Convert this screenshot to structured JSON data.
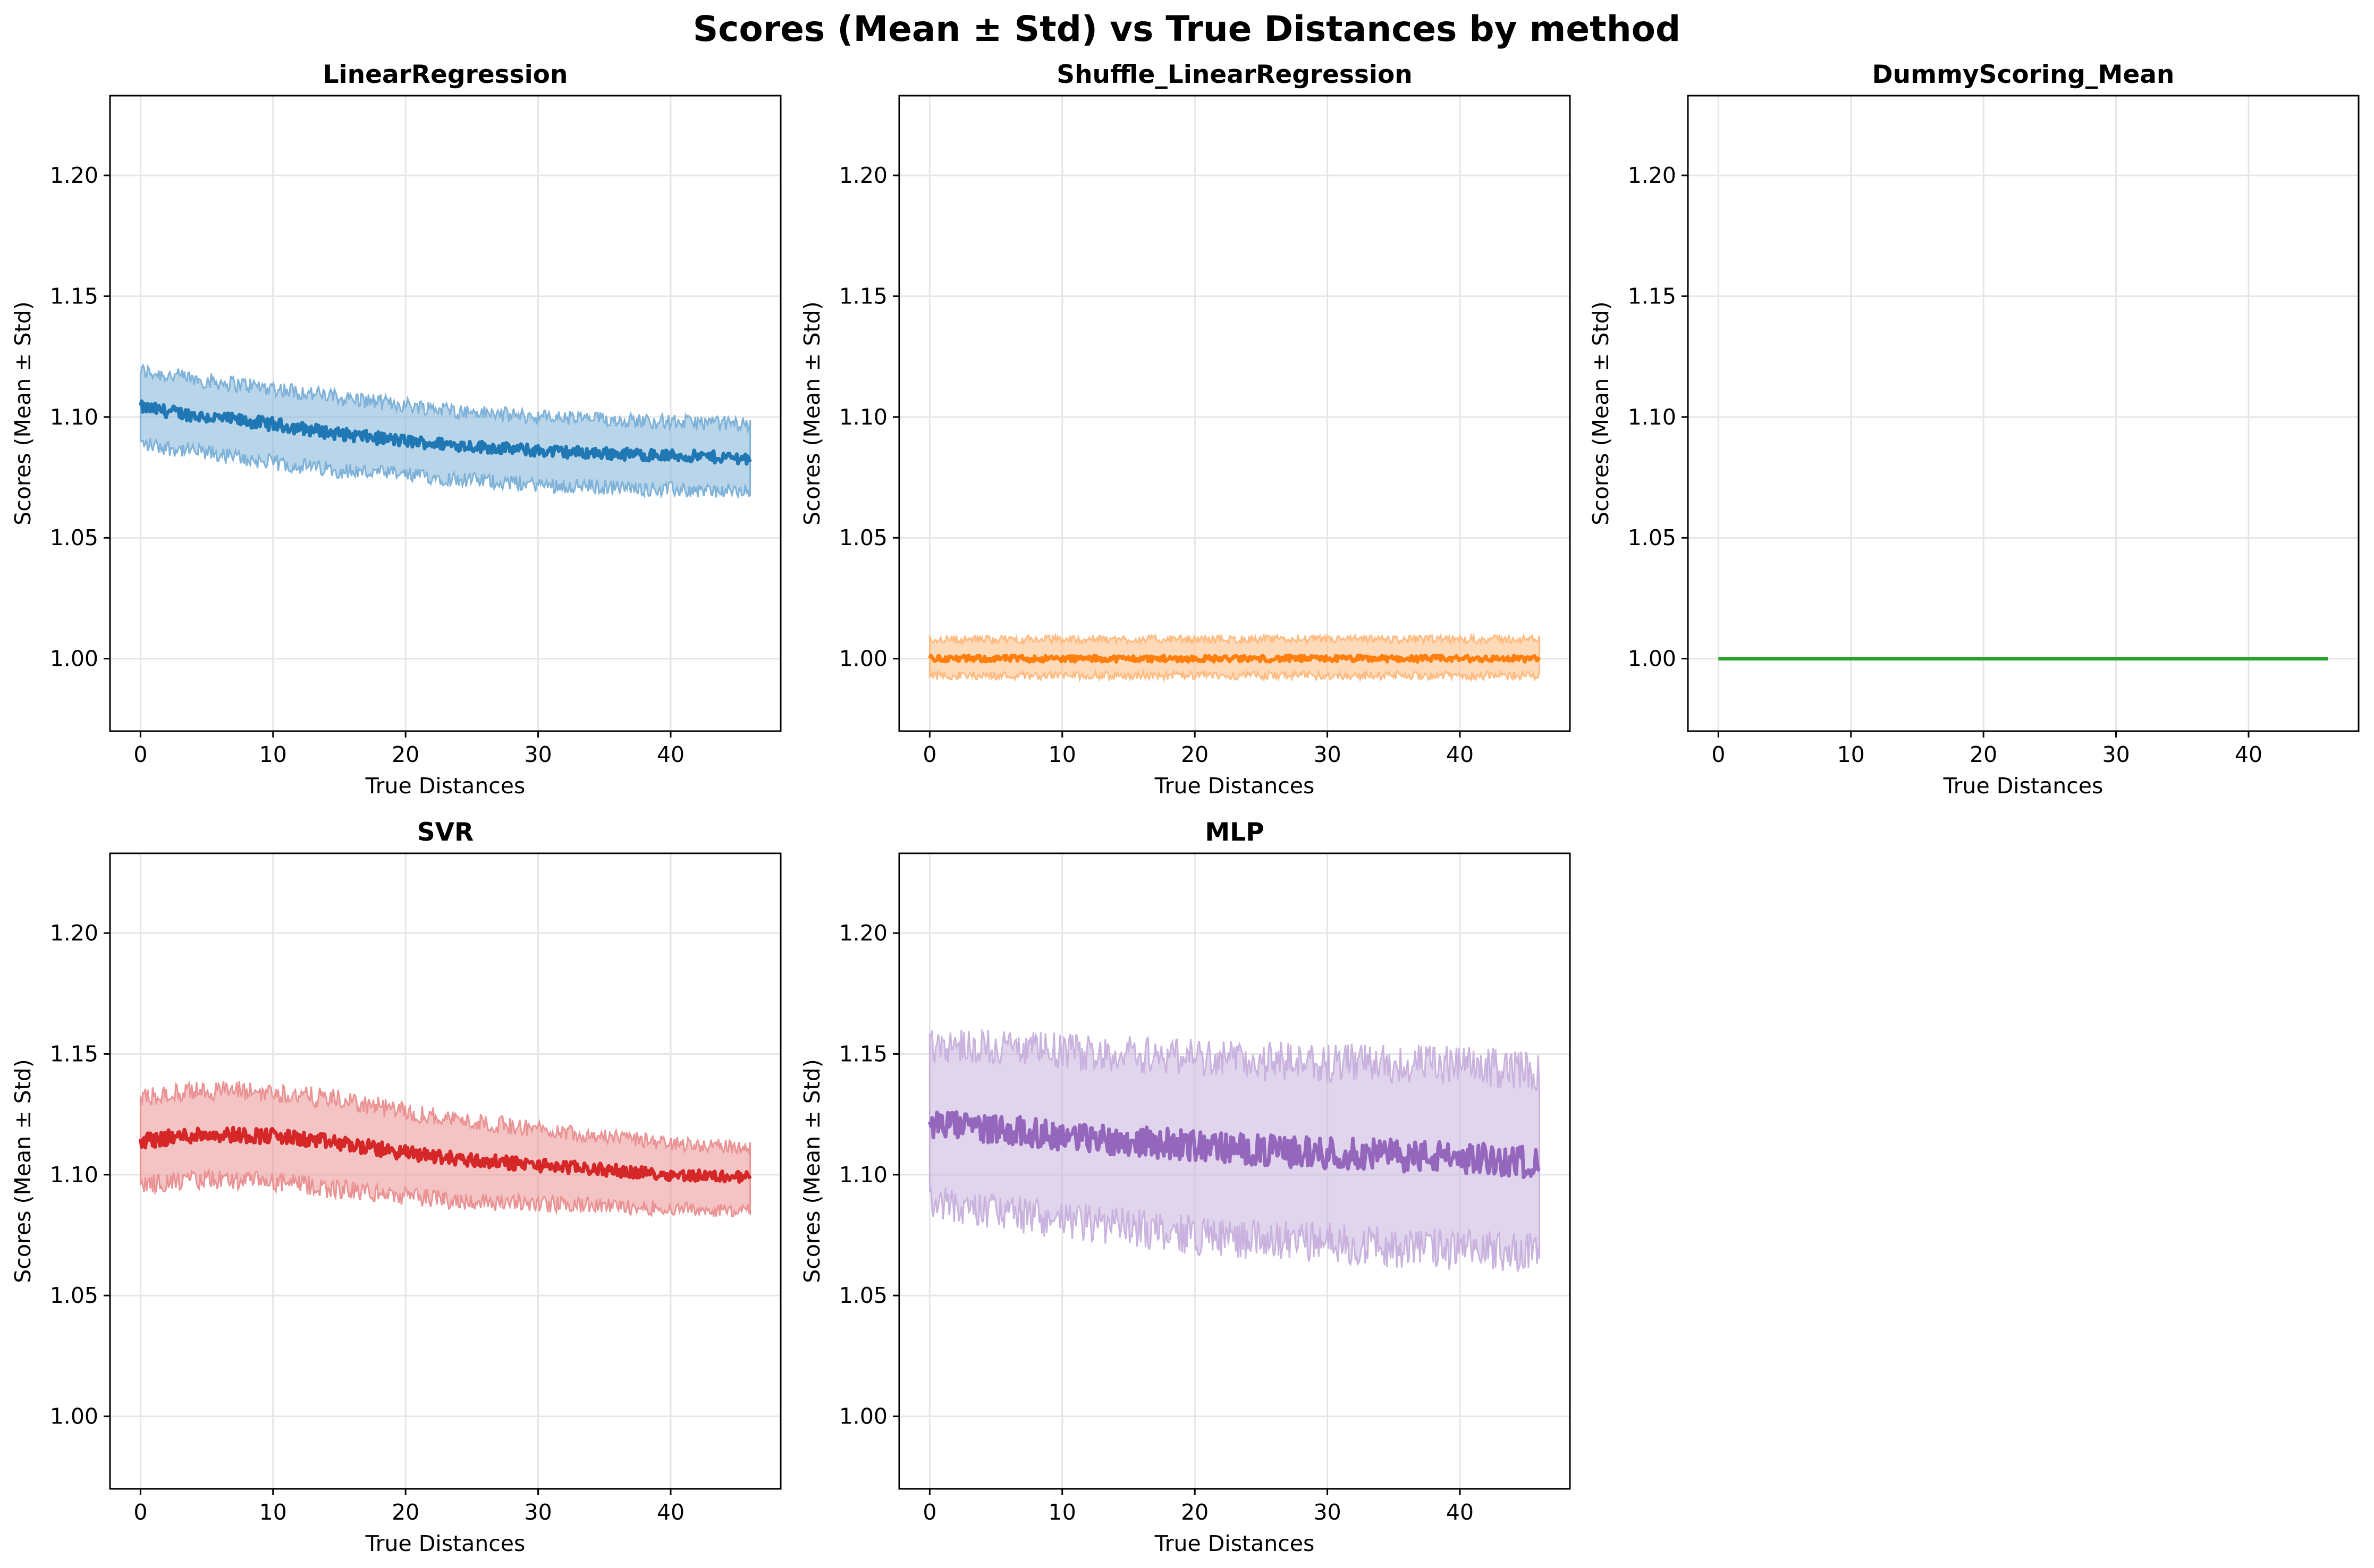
{
  "suptitle": "Scores (Mean ± Std) vs True Distances by method",
  "chart_data": [
    {
      "type": "line",
      "title": "LinearRegression",
      "xlabel": "True Distances",
      "ylabel": "Scores (Mean ± Std)",
      "xlim": [
        -2.3,
        48.3
      ],
      "ylim": [
        0.97,
        1.233
      ],
      "xticks": [
        0,
        10,
        20,
        30,
        40
      ],
      "yticks": [
        1.0,
        1.05,
        1.1,
        1.15,
        1.2
      ],
      "ytick_labels": [
        "1.00",
        "1.05",
        "1.10",
        "1.15",
        "1.20"
      ],
      "grid": true,
      "color": "#1f77b4",
      "band_color": "#7fb2d9",
      "series": {
        "x": [
          0,
          5,
          10,
          15,
          20,
          25,
          30,
          35,
          40,
          46
        ],
        "mean": [
          1.104,
          1.1,
          1.097,
          1.093,
          1.09,
          1.088,
          1.086,
          1.085,
          1.084,
          1.083
        ],
        "lower": [
          1.089,
          1.085,
          1.081,
          1.078,
          1.076,
          1.074,
          1.072,
          1.071,
          1.07,
          1.069
        ],
        "upper": [
          1.119,
          1.115,
          1.112,
          1.108,
          1.105,
          1.102,
          1.1,
          1.099,
          1.098,
          1.097
        ]
      }
    },
    {
      "type": "line",
      "title": "Shuffle_LinearRegression",
      "xlabel": "True Distances",
      "ylabel": "Scores (Mean ± Std)",
      "xlim": [
        -2.3,
        48.3
      ],
      "ylim": [
        0.97,
        1.233
      ],
      "xticks": [
        0,
        10,
        20,
        30,
        40
      ],
      "yticks": [
        1.0,
        1.05,
        1.1,
        1.15,
        1.2
      ],
      "ytick_labels": [
        "1.00",
        "1.05",
        "1.10",
        "1.15",
        "1.20"
      ],
      "grid": true,
      "color": "#ff7f0e",
      "band_color": "#ffbb80",
      "series": {
        "x": [
          0,
          5,
          10,
          15,
          20,
          25,
          30,
          35,
          40,
          46
        ],
        "mean": [
          1.0,
          1.0,
          1.0,
          1.0,
          1.0,
          1.0,
          1.0,
          1.0,
          1.0,
          1.0
        ],
        "lower": [
          0.993,
          0.993,
          0.993,
          0.993,
          0.993,
          0.993,
          0.993,
          0.993,
          0.993,
          0.993
        ],
        "upper": [
          1.008,
          1.008,
          1.008,
          1.008,
          1.008,
          1.008,
          1.008,
          1.008,
          1.008,
          1.008
        ]
      }
    },
    {
      "type": "line",
      "title": "DummyScoring_Mean",
      "xlabel": "True Distances",
      "ylabel": "Scores (Mean ± Std)",
      "xlim": [
        -2.3,
        48.3
      ],
      "ylim": [
        0.97,
        1.233
      ],
      "xticks": [
        0,
        10,
        20,
        30,
        40
      ],
      "yticks": [
        1.0,
        1.05,
        1.1,
        1.15,
        1.2
      ],
      "ytick_labels": [
        "1.00",
        "1.05",
        "1.10",
        "1.15",
        "1.20"
      ],
      "grid": true,
      "color": "#2ca02c",
      "band_color": "#96d096",
      "series": {
        "x": [
          0,
          46
        ],
        "mean": [
          1.0,
          1.0
        ],
        "lower": [
          1.0,
          1.0
        ],
        "upper": [
          1.0,
          1.0
        ]
      }
    },
    {
      "type": "line",
      "title": "SVR",
      "xlabel": "True Distances",
      "ylabel": "Scores (Mean ± Std)",
      "xlim": [
        -2.3,
        48.3
      ],
      "ylim": [
        0.97,
        1.233
      ],
      "xticks": [
        0,
        10,
        20,
        30,
        40
      ],
      "yticks": [
        1.0,
        1.05,
        1.1,
        1.15,
        1.2
      ],
      "ytick_labels": [
        "1.00",
        "1.05",
        "1.10",
        "1.15",
        "1.20"
      ],
      "grid": true,
      "color": "#d62728",
      "band_color": "#eb9394",
      "series": {
        "x": [
          0,
          5,
          10,
          15,
          20,
          25,
          30,
          35,
          40,
          46
        ],
        "mean": [
          1.114,
          1.117,
          1.116,
          1.113,
          1.109,
          1.106,
          1.104,
          1.102,
          1.1,
          1.099
        ],
        "lower": [
          1.096,
          1.098,
          1.097,
          1.094,
          1.091,
          1.089,
          1.088,
          1.087,
          1.086,
          1.085
        ],
        "upper": [
          1.132,
          1.135,
          1.134,
          1.131,
          1.126,
          1.122,
          1.119,
          1.116,
          1.113,
          1.111
        ]
      }
    },
    {
      "type": "line",
      "title": "MLP",
      "xlabel": "True Distances",
      "ylabel": "Scores (Mean ± Std)",
      "xlim": [
        -2.3,
        48.3
      ],
      "ylim": [
        0.97,
        1.233
      ],
      "xticks": [
        0,
        10,
        20,
        30,
        40
      ],
      "yticks": [
        1.0,
        1.05,
        1.1,
        1.15,
        1.2
      ],
      "ytick_labels": [
        "1.00",
        "1.05",
        "1.10",
        "1.15",
        "1.20"
      ],
      "grid": true,
      "color": "#9467bd",
      "band_color": "#c9b3de",
      "series": {
        "x": [
          0,
          5,
          10,
          15,
          20,
          25,
          30,
          35,
          40,
          46
        ],
        "mean": [
          1.121,
          1.119,
          1.116,
          1.114,
          1.112,
          1.11,
          1.109,
          1.108,
          1.107,
          1.105
        ],
        "lower": [
          1.088,
          1.085,
          1.081,
          1.078,
          1.075,
          1.073,
          1.072,
          1.07,
          1.069,
          1.068
        ],
        "upper": [
          1.154,
          1.153,
          1.151,
          1.15,
          1.149,
          1.147,
          1.146,
          1.146,
          1.145,
          1.143
        ]
      }
    }
  ]
}
